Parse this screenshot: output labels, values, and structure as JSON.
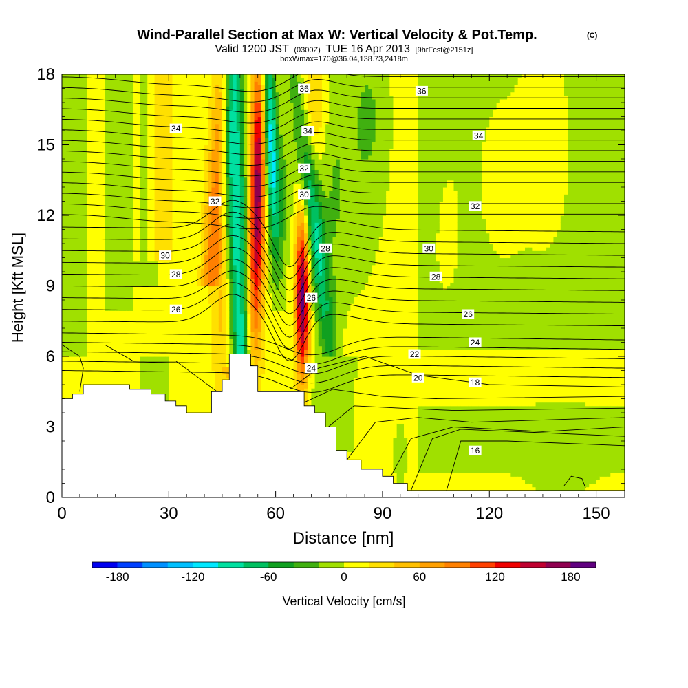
{
  "chart_data": {
    "type": "heatmap",
    "title": "Wind-Parallel Section at Max W: Vertical Velocity & Pot.Temp.",
    "title_mark": "(C)",
    "subtitle": {
      "main_a": "Valid 1200 JST",
      "main_b": "(0300Z)",
      "main_c": "TUE 16 Apr 2013",
      "main_d": "[9hrFcst@2151z]"
    },
    "subsubtitle": "boxWmax=170@36.04,138.73,2418m",
    "xlabel": "Distance [nm]",
    "ylabel": "Height [Kft MSL]",
    "xlim": [
      0,
      158
    ],
    "ylim": [
      0,
      18
    ],
    "xticks": [
      "0",
      "30",
      "60",
      "90",
      "120",
      "150"
    ],
    "xtick_values": [
      0,
      30,
      60,
      90,
      120,
      150
    ],
    "yticks": [
      "0",
      "3",
      "6",
      "9",
      "12",
      "15",
      "18"
    ],
    "ytick_values": [
      0,
      3,
      6,
      9,
      12,
      15,
      18
    ],
    "colorbar": {
      "label": "Vertical Velocity [cm/s]",
      "tick_labels": [
        "-180",
        "-120",
        "-60",
        "0",
        "60",
        "120",
        "180"
      ],
      "tick_values": [
        -180,
        -120,
        -60,
        0,
        60,
        120,
        180
      ],
      "range": [
        -200,
        200
      ],
      "bins": 20,
      "colors": [
        "#0000f0",
        "#0040ff",
        "#0090ff",
        "#00c0ff",
        "#00e8ff",
        "#00e0a0",
        "#00c060",
        "#10a020",
        "#40b010",
        "#a0e000",
        "#ffff00",
        "#ffe000",
        "#ffc000",
        "#ffa000",
        "#ff8000",
        "#ff4000",
        "#f00000",
        "#c00030",
        "#900050",
        "#600080"
      ]
    },
    "contour_field": "Potential Temperature",
    "contour_labels": [
      {
        "text": "36",
        "x": 68,
        "y": 17.4
      },
      {
        "text": "36",
        "x": 101,
        "y": 17.3
      },
      {
        "text": "34",
        "x": 32,
        "y": 15.7
      },
      {
        "text": "34",
        "x": 69,
        "y": 15.6
      },
      {
        "text": "34",
        "x": 117,
        "y": 15.4
      },
      {
        "text": "32",
        "x": 43,
        "y": 12.6
      },
      {
        "text": "32",
        "x": 68,
        "y": 14.0
      },
      {
        "text": "32",
        "x": 116,
        "y": 12.4
      },
      {
        "text": "30",
        "x": 68,
        "y": 12.9
      },
      {
        "text": "30",
        "x": 29,
        "y": 10.3
      },
      {
        "text": "30",
        "x": 103,
        "y": 10.6
      },
      {
        "text": "28",
        "x": 74,
        "y": 10.6
      },
      {
        "text": "28",
        "x": 32,
        "y": 9.5
      },
      {
        "text": "28",
        "x": 105,
        "y": 9.4
      },
      {
        "text": "26",
        "x": 32,
        "y": 8.0
      },
      {
        "text": "26",
        "x": 70,
        "y": 8.5
      },
      {
        "text": "26",
        "x": 114,
        "y": 7.8
      },
      {
        "text": "24",
        "x": 70,
        "y": 5.5
      },
      {
        "text": "24",
        "x": 116,
        "y": 6.6
      },
      {
        "text": "22",
        "x": 99,
        "y": 6.1
      },
      {
        "text": "20",
        "x": 100,
        "y": 5.1
      },
      {
        "text": "18",
        "x": 116,
        "y": 4.9
      },
      {
        "text": "16",
        "x": 116,
        "y": 2.0
      }
    ],
    "terrain_profile": [
      [
        0,
        4.2
      ],
      [
        3,
        4.2
      ],
      [
        3,
        4.4
      ],
      [
        6,
        4.4
      ],
      [
        6,
        4.8
      ],
      [
        19,
        4.8
      ],
      [
        19,
        4.6
      ],
      [
        25,
        4.6
      ],
      [
        25,
        4.4
      ],
      [
        29,
        4.4
      ],
      [
        29,
        4.1
      ],
      [
        32,
        4.1
      ],
      [
        32,
        3.9
      ],
      [
        35,
        3.9
      ],
      [
        35,
        3.6
      ],
      [
        42,
        3.6
      ],
      [
        42,
        4.5
      ],
      [
        45,
        4.5
      ],
      [
        45,
        5.0
      ],
      [
        47,
        5.0
      ],
      [
        47,
        6.1
      ],
      [
        53,
        6.1
      ],
      [
        53,
        5.6
      ],
      [
        55,
        5.6
      ],
      [
        55,
        4.5
      ],
      [
        68,
        4.5
      ],
      [
        68,
        3.9
      ],
      [
        71,
        3.9
      ],
      [
        71,
        3.6
      ],
      [
        74,
        3.6
      ],
      [
        74,
        3.0
      ],
      [
        77,
        3.0
      ],
      [
        77,
        2.0
      ],
      [
        80,
        2.0
      ],
      [
        80,
        1.6
      ],
      [
        84,
        1.6
      ],
      [
        84,
        1.2
      ],
      [
        90,
        1.2
      ],
      [
        90,
        0.9
      ],
      [
        93,
        0.9
      ],
      [
        93,
        0.6
      ],
      [
        97,
        0.6
      ],
      [
        97,
        0.3
      ],
      [
        158,
        0.3
      ]
    ]
  }
}
